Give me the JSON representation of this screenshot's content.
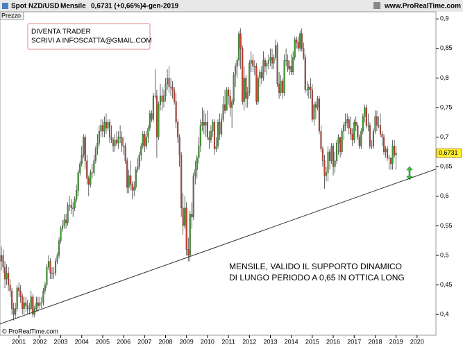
{
  "header": {
    "instrument": "Spot NZD/USD",
    "period": "Mensile",
    "quote": "0,6731 (+0,66%)",
    "date": "4-gen-2019",
    "site": "www.ProRealTime.com"
  },
  "panel_label": "Prezzo",
  "copyright": "© ProRealTime.com",
  "annotations": {
    "box": [
      "DIVENTA TRADER",
      "SCRIVI A INFOSCATTA@GMAIL.COM"
    ],
    "note": [
      "MENSILE, VALIDO IL SUPPORTO DINAMICO",
      "DI LUNGO PERIODO A 0,65 IN OTTICA LONG"
    ]
  },
  "chart_data": {
    "type": "candlestick",
    "up_color": "#3c9a2c",
    "down_color": "#c8402e",
    "xlim": [
      2000.1,
      2020.9
    ],
    "xticks": [
      2001,
      2002,
      2003,
      2004,
      2005,
      2006,
      2007,
      2008,
      2009,
      2010,
      2011,
      2012,
      2013,
      2014,
      2015,
      2016,
      2017,
      2018,
      2019,
      2020
    ],
    "ylim": [
      0.365,
      0.912
    ],
    "yticks": [
      {
        "value": 0.9,
        "label": "0,9"
      },
      {
        "value": 0.85,
        "label": "0,85"
      },
      {
        "value": 0.8,
        "label": "0,8"
      },
      {
        "value": 0.75,
        "label": "0,75"
      },
      {
        "value": 0.7,
        "label": "0,7"
      },
      {
        "value": 0.65,
        "label": "0,65"
      },
      {
        "value": 0.6,
        "label": "0,6"
      },
      {
        "value": 0.55,
        "label": "0,55"
      },
      {
        "value": 0.5,
        "label": "0,5"
      },
      {
        "value": 0.45,
        "label": "0,45"
      },
      {
        "value": 0.4,
        "label": "0,4"
      }
    ],
    "last_price": {
      "value": 0.6731,
      "label": "0,6731"
    },
    "trendline": {
      "x": [
        2000.1,
        2020.9
      ],
      "values": [
        0.384,
        0.646
      ]
    },
    "x": [
      "2000-02",
      "2000-03",
      "2000-04",
      "2000-05",
      "2000-06",
      "2000-07",
      "2000-08",
      "2000-09",
      "2000-10",
      "2000-11",
      "2000-12",
      "2001-01",
      "2001-02",
      "2001-03",
      "2001-04",
      "2001-05",
      "2001-06",
      "2001-07",
      "2001-08",
      "2001-09",
      "2001-10",
      "2001-11",
      "2001-12",
      "2002-01",
      "2002-02",
      "2002-03",
      "2002-04",
      "2002-05",
      "2002-06",
      "2002-07",
      "2002-08",
      "2002-09",
      "2002-10",
      "2002-11",
      "2002-12",
      "2003-01",
      "2003-02",
      "2003-03",
      "2003-04",
      "2003-05",
      "2003-06",
      "2003-07",
      "2003-08",
      "2003-09",
      "2003-10",
      "2003-11",
      "2003-12",
      "2004-01",
      "2004-02",
      "2004-03",
      "2004-04",
      "2004-05",
      "2004-06",
      "2004-07",
      "2004-08",
      "2004-09",
      "2004-10",
      "2004-11",
      "2004-12",
      "2005-01",
      "2005-02",
      "2005-03",
      "2005-04",
      "2005-05",
      "2005-06",
      "2005-07",
      "2005-08",
      "2005-09",
      "2005-10",
      "2005-11",
      "2005-12",
      "2006-01",
      "2006-02",
      "2006-03",
      "2006-04",
      "2006-05",
      "2006-06",
      "2006-07",
      "2006-08",
      "2006-09",
      "2006-10",
      "2006-11",
      "2006-12",
      "2007-01",
      "2007-02",
      "2007-03",
      "2007-04",
      "2007-05",
      "2007-06",
      "2007-07",
      "2007-08",
      "2007-09",
      "2007-10",
      "2007-11",
      "2007-12",
      "2008-01",
      "2008-02",
      "2008-03",
      "2008-04",
      "2008-05",
      "2008-06",
      "2008-07",
      "2008-08",
      "2008-09",
      "2008-10",
      "2008-11",
      "2008-12",
      "2009-01",
      "2009-02",
      "2009-03",
      "2009-04",
      "2009-05",
      "2009-06",
      "2009-07",
      "2009-08",
      "2009-09",
      "2009-10",
      "2009-11",
      "2009-12",
      "2010-01",
      "2010-02",
      "2010-03",
      "2010-04",
      "2010-05",
      "2010-06",
      "2010-07",
      "2010-08",
      "2010-09",
      "2010-10",
      "2010-11",
      "2010-12",
      "2011-01",
      "2011-02",
      "2011-03",
      "2011-04",
      "2011-05",
      "2011-06",
      "2011-07",
      "2011-08",
      "2011-09",
      "2011-10",
      "2011-11",
      "2011-12",
      "2012-01",
      "2012-02",
      "2012-03",
      "2012-04",
      "2012-05",
      "2012-06",
      "2012-07",
      "2012-08",
      "2012-09",
      "2012-10",
      "2012-11",
      "2012-12",
      "2013-01",
      "2013-02",
      "2013-03",
      "2013-04",
      "2013-05",
      "2013-06",
      "2013-07",
      "2013-08",
      "2013-09",
      "2013-10",
      "2013-11",
      "2013-12",
      "2014-01",
      "2014-02",
      "2014-03",
      "2014-04",
      "2014-05",
      "2014-06",
      "2014-07",
      "2014-08",
      "2014-09",
      "2014-10",
      "2014-11",
      "2014-12",
      "2015-01",
      "2015-02",
      "2015-03",
      "2015-04",
      "2015-05",
      "2015-06",
      "2015-07",
      "2015-08",
      "2015-09",
      "2015-10",
      "2015-11",
      "2015-12",
      "2016-01",
      "2016-02",
      "2016-03",
      "2016-04",
      "2016-05",
      "2016-06",
      "2016-07",
      "2016-08",
      "2016-09",
      "2016-10",
      "2016-11",
      "2016-12",
      "2017-01",
      "2017-02",
      "2017-03",
      "2017-04",
      "2017-05",
      "2017-06",
      "2017-07",
      "2017-08",
      "2017-09",
      "2017-10",
      "2017-11",
      "2017-12",
      "2018-01",
      "2018-02",
      "2018-03",
      "2018-04",
      "2018-05",
      "2018-06",
      "2018-07",
      "2018-08",
      "2018-09",
      "2018-10",
      "2018-11",
      "2018-12",
      "2019-01"
    ],
    "open": [
      0.5,
      0.49,
      0.5,
      0.48,
      0.46,
      0.47,
      0.45,
      0.44,
      0.41,
      0.4,
      0.41,
      0.445,
      0.44,
      0.43,
      0.41,
      0.42,
      0.415,
      0.41,
      0.41,
      0.43,
      0.4,
      0.41,
      0.42,
      0.415,
      0.42,
      0.42,
      0.44,
      0.45,
      0.48,
      0.49,
      0.47,
      0.47,
      0.47,
      0.49,
      0.5,
      0.525,
      0.545,
      0.55,
      0.56,
      0.555,
      0.585,
      0.585,
      0.58,
      0.58,
      0.595,
      0.61,
      0.64,
      0.655,
      0.67,
      0.7,
      0.66,
      0.63,
      0.62,
      0.64,
      0.64,
      0.66,
      0.68,
      0.69,
      0.71,
      0.72,
      0.71,
      0.725,
      0.715,
      0.725,
      0.7,
      0.695,
      0.685,
      0.695,
      0.69,
      0.7,
      0.7,
      0.685,
      0.685,
      0.66,
      0.615,
      0.635,
      0.62,
      0.61,
      0.615,
      0.645,
      0.65,
      0.67,
      0.685,
      0.705,
      0.685,
      0.7,
      0.715,
      0.74,
      0.73,
      0.77,
      0.77,
      0.7,
      0.755,
      0.77,
      0.76,
      0.77,
      0.79,
      0.8,
      0.785,
      0.785,
      0.78,
      0.76,
      0.725,
      0.7,
      0.67,
      0.58,
      0.55,
      0.58,
      0.51,
      0.5,
      0.57,
      0.565,
      0.635,
      0.645,
      0.665,
      0.685,
      0.72,
      0.725,
      0.72,
      0.725,
      0.7,
      0.695,
      0.71,
      0.725,
      0.68,
      0.685,
      0.725,
      0.705,
      0.73,
      0.755,
      0.745,
      0.78,
      0.77,
      0.75,
      0.76,
      0.805,
      0.82,
      0.83,
      0.875,
      0.85,
      0.76,
      0.8,
      0.765,
      0.775,
      0.825,
      0.83,
      0.82,
      0.82,
      0.76,
      0.8,
      0.81,
      0.8,
      0.83,
      0.82,
      0.825,
      0.83,
      0.835,
      0.825,
      0.835,
      0.855,
      0.79,
      0.775,
      0.795,
      0.775,
      0.83,
      0.83,
      0.815,
      0.82,
      0.81,
      0.835,
      0.865,
      0.86,
      0.85,
      0.875,
      0.85,
      0.835,
      0.78,
      0.78,
      0.785,
      0.78,
      0.73,
      0.755,
      0.75,
      0.765,
      0.71,
      0.68,
      0.66,
      0.635,
      0.64,
      0.675,
      0.66,
      0.685,
      0.65,
      0.66,
      0.69,
      0.7,
      0.675,
      0.71,
      0.72,
      0.725,
      0.73,
      0.715,
      0.705,
      0.695,
      0.725,
      0.72,
      0.7,
      0.685,
      0.71,
      0.735,
      0.75,
      0.72,
      0.72,
      0.685,
      0.685,
      0.71,
      0.735,
      0.72,
      0.72,
      0.705,
      0.7,
      0.675,
      0.68,
      0.665,
      0.665,
      0.655,
      0.685,
      0.67
    ],
    "high": [
      0.515,
      0.515,
      0.51,
      0.49,
      0.485,
      0.48,
      0.46,
      0.445,
      0.42,
      0.42,
      0.45,
      0.455,
      0.45,
      0.435,
      0.43,
      0.43,
      0.425,
      0.42,
      0.44,
      0.435,
      0.415,
      0.43,
      0.43,
      0.43,
      0.43,
      0.445,
      0.455,
      0.485,
      0.5,
      0.495,
      0.48,
      0.48,
      0.495,
      0.505,
      0.53,
      0.55,
      0.56,
      0.57,
      0.57,
      0.59,
      0.6,
      0.595,
      0.59,
      0.6,
      0.62,
      0.645,
      0.66,
      0.685,
      0.705,
      0.705,
      0.67,
      0.635,
      0.645,
      0.655,
      0.67,
      0.685,
      0.705,
      0.72,
      0.73,
      0.73,
      0.735,
      0.74,
      0.73,
      0.73,
      0.72,
      0.7,
      0.705,
      0.71,
      0.71,
      0.72,
      0.71,
      0.7,
      0.69,
      0.665,
      0.645,
      0.66,
      0.625,
      0.625,
      0.65,
      0.665,
      0.675,
      0.69,
      0.71,
      0.71,
      0.71,
      0.72,
      0.745,
      0.745,
      0.775,
      0.815,
      0.78,
      0.76,
      0.79,
      0.785,
      0.78,
      0.8,
      0.815,
      0.82,
      0.8,
      0.795,
      0.785,
      0.775,
      0.73,
      0.705,
      0.675,
      0.605,
      0.6,
      0.59,
      0.53,
      0.575,
      0.59,
      0.64,
      0.66,
      0.67,
      0.7,
      0.73,
      0.75,
      0.745,
      0.74,
      0.745,
      0.71,
      0.72,
      0.73,
      0.73,
      0.7,
      0.73,
      0.74,
      0.74,
      0.77,
      0.78,
      0.785,
      0.785,
      0.78,
      0.765,
      0.81,
      0.825,
      0.835,
      0.88,
      0.884,
      0.855,
      0.82,
      0.805,
      0.785,
      0.83,
      0.845,
      0.84,
      0.83,
      0.825,
      0.805,
      0.815,
      0.82,
      0.845,
      0.835,
      0.83,
      0.84,
      0.85,
      0.85,
      0.84,
      0.865,
      0.86,
      0.81,
      0.805,
      0.8,
      0.84,
      0.85,
      0.84,
      0.83,
      0.84,
      0.845,
      0.87,
      0.87,
      0.87,
      0.88,
      0.884,
      0.86,
      0.84,
      0.795,
      0.79,
      0.8,
      0.79,
      0.76,
      0.76,
      0.77,
      0.77,
      0.72,
      0.685,
      0.67,
      0.65,
      0.685,
      0.68,
      0.69,
      0.69,
      0.675,
      0.695,
      0.705,
      0.7,
      0.715,
      0.725,
      0.74,
      0.74,
      0.735,
      0.735,
      0.715,
      0.73,
      0.735,
      0.725,
      0.705,
      0.715,
      0.74,
      0.755,
      0.755,
      0.74,
      0.725,
      0.695,
      0.715,
      0.745,
      0.745,
      0.735,
      0.74,
      0.71,
      0.705,
      0.685,
      0.685,
      0.67,
      0.665,
      0.695,
      0.695,
      0.685
    ],
    "low": [
      0.475,
      0.475,
      0.47,
      0.445,
      0.45,
      0.44,
      0.43,
      0.4,
      0.39,
      0.392,
      0.405,
      0.43,
      0.42,
      0.4,
      0.4,
      0.405,
      0.4,
      0.4,
      0.405,
      0.395,
      0.395,
      0.405,
      0.405,
      0.41,
      0.41,
      0.415,
      0.435,
      0.445,
      0.475,
      0.46,
      0.46,
      0.46,
      0.465,
      0.485,
      0.495,
      0.52,
      0.54,
      0.545,
      0.545,
      0.55,
      0.575,
      0.57,
      0.565,
      0.575,
      0.59,
      0.6,
      0.635,
      0.65,
      0.665,
      0.645,
      0.62,
      0.6,
      0.615,
      0.63,
      0.635,
      0.655,
      0.67,
      0.685,
      0.7,
      0.7,
      0.7,
      0.705,
      0.71,
      0.69,
      0.69,
      0.675,
      0.675,
      0.685,
      0.68,
      0.69,
      0.675,
      0.67,
      0.655,
      0.605,
      0.605,
      0.61,
      0.595,
      0.6,
      0.61,
      0.64,
      0.645,
      0.66,
      0.68,
      0.675,
      0.68,
      0.69,
      0.71,
      0.725,
      0.725,
      0.765,
      0.665,
      0.695,
      0.745,
      0.745,
      0.75,
      0.76,
      0.78,
      0.775,
      0.77,
      0.765,
      0.755,
      0.715,
      0.69,
      0.65,
      0.565,
      0.535,
      0.545,
      0.5,
      0.49,
      0.49,
      0.545,
      0.56,
      0.62,
      0.63,
      0.655,
      0.675,
      0.71,
      0.705,
      0.7,
      0.695,
      0.68,
      0.69,
      0.7,
      0.67,
      0.675,
      0.68,
      0.695,
      0.7,
      0.725,
      0.74,
      0.745,
      0.755,
      0.735,
      0.715,
      0.755,
      0.785,
      0.8,
      0.82,
      0.815,
      0.755,
      0.745,
      0.75,
      0.75,
      0.77,
      0.81,
      0.81,
      0.805,
      0.755,
      0.755,
      0.785,
      0.79,
      0.795,
      0.81,
      0.805,
      0.815,
      0.82,
      0.815,
      0.815,
      0.83,
      0.785,
      0.765,
      0.77,
      0.765,
      0.77,
      0.82,
      0.81,
      0.805,
      0.805,
      0.805,
      0.83,
      0.85,
      0.845,
      0.845,
      0.845,
      0.83,
      0.775,
      0.77,
      0.765,
      0.765,
      0.725,
      0.72,
      0.73,
      0.745,
      0.705,
      0.675,
      0.65,
      0.613,
      0.625,
      0.625,
      0.645,
      0.655,
      0.635,
      0.64,
      0.655,
      0.67,
      0.665,
      0.67,
      0.695,
      0.71,
      0.715,
      0.705,
      0.695,
      0.685,
      0.69,
      0.71,
      0.695,
      0.68,
      0.68,
      0.705,
      0.725,
      0.715,
      0.71,
      0.68,
      0.68,
      0.68,
      0.705,
      0.71,
      0.715,
      0.7,
      0.685,
      0.67,
      0.665,
      0.66,
      0.645,
      0.645,
      0.645,
      0.665,
      0.645
    ],
    "close": [
      0.49,
      0.5,
      0.48,
      0.46,
      0.47,
      0.45,
      0.44,
      0.41,
      0.4,
      0.41,
      0.445,
      0.44,
      0.43,
      0.41,
      0.42,
      0.415,
      0.41,
      0.41,
      0.43,
      0.4,
      0.41,
      0.42,
      0.415,
      0.42,
      0.42,
      0.44,
      0.45,
      0.48,
      0.49,
      0.47,
      0.47,
      0.47,
      0.49,
      0.5,
      0.525,
      0.545,
      0.55,
      0.56,
      0.555,
      0.585,
      0.585,
      0.58,
      0.58,
      0.595,
      0.61,
      0.64,
      0.655,
      0.67,
      0.7,
      0.66,
      0.63,
      0.62,
      0.64,
      0.64,
      0.66,
      0.68,
      0.69,
      0.71,
      0.72,
      0.71,
      0.725,
      0.715,
      0.725,
      0.7,
      0.695,
      0.685,
      0.695,
      0.69,
      0.7,
      0.7,
      0.685,
      0.685,
      0.66,
      0.615,
      0.635,
      0.62,
      0.61,
      0.615,
      0.645,
      0.65,
      0.67,
      0.685,
      0.705,
      0.685,
      0.7,
      0.715,
      0.74,
      0.73,
      0.77,
      0.77,
      0.7,
      0.755,
      0.77,
      0.76,
      0.77,
      0.79,
      0.8,
      0.785,
      0.785,
      0.78,
      0.76,
      0.725,
      0.7,
      0.67,
      0.58,
      0.55,
      0.58,
      0.51,
      0.5,
      0.57,
      0.565,
      0.635,
      0.645,
      0.665,
      0.685,
      0.72,
      0.725,
      0.72,
      0.725,
      0.7,
      0.695,
      0.71,
      0.725,
      0.68,
      0.685,
      0.725,
      0.705,
      0.73,
      0.755,
      0.745,
      0.78,
      0.77,
      0.75,
      0.76,
      0.805,
      0.82,
      0.83,
      0.875,
      0.85,
      0.76,
      0.8,
      0.765,
      0.775,
      0.825,
      0.83,
      0.82,
      0.82,
      0.76,
      0.8,
      0.81,
      0.8,
      0.83,
      0.82,
      0.825,
      0.83,
      0.835,
      0.825,
      0.835,
      0.855,
      0.79,
      0.775,
      0.795,
      0.775,
      0.83,
      0.83,
      0.815,
      0.82,
      0.81,
      0.835,
      0.865,
      0.86,
      0.85,
      0.875,
      0.85,
      0.835,
      0.78,
      0.78,
      0.785,
      0.78,
      0.73,
      0.755,
      0.75,
      0.765,
      0.71,
      0.68,
      0.66,
      0.635,
      0.64,
      0.675,
      0.66,
      0.685,
      0.65,
      0.66,
      0.69,
      0.7,
      0.675,
      0.71,
      0.72,
      0.725,
      0.73,
      0.715,
      0.705,
      0.695,
      0.725,
      0.72,
      0.7,
      0.685,
      0.71,
      0.735,
      0.75,
      0.72,
      0.72,
      0.685,
      0.685,
      0.71,
      0.735,
      0.72,
      0.72,
      0.705,
      0.7,
      0.675,
      0.68,
      0.665,
      0.665,
      0.655,
      0.685,
      0.67,
      0.6731
    ]
  }
}
